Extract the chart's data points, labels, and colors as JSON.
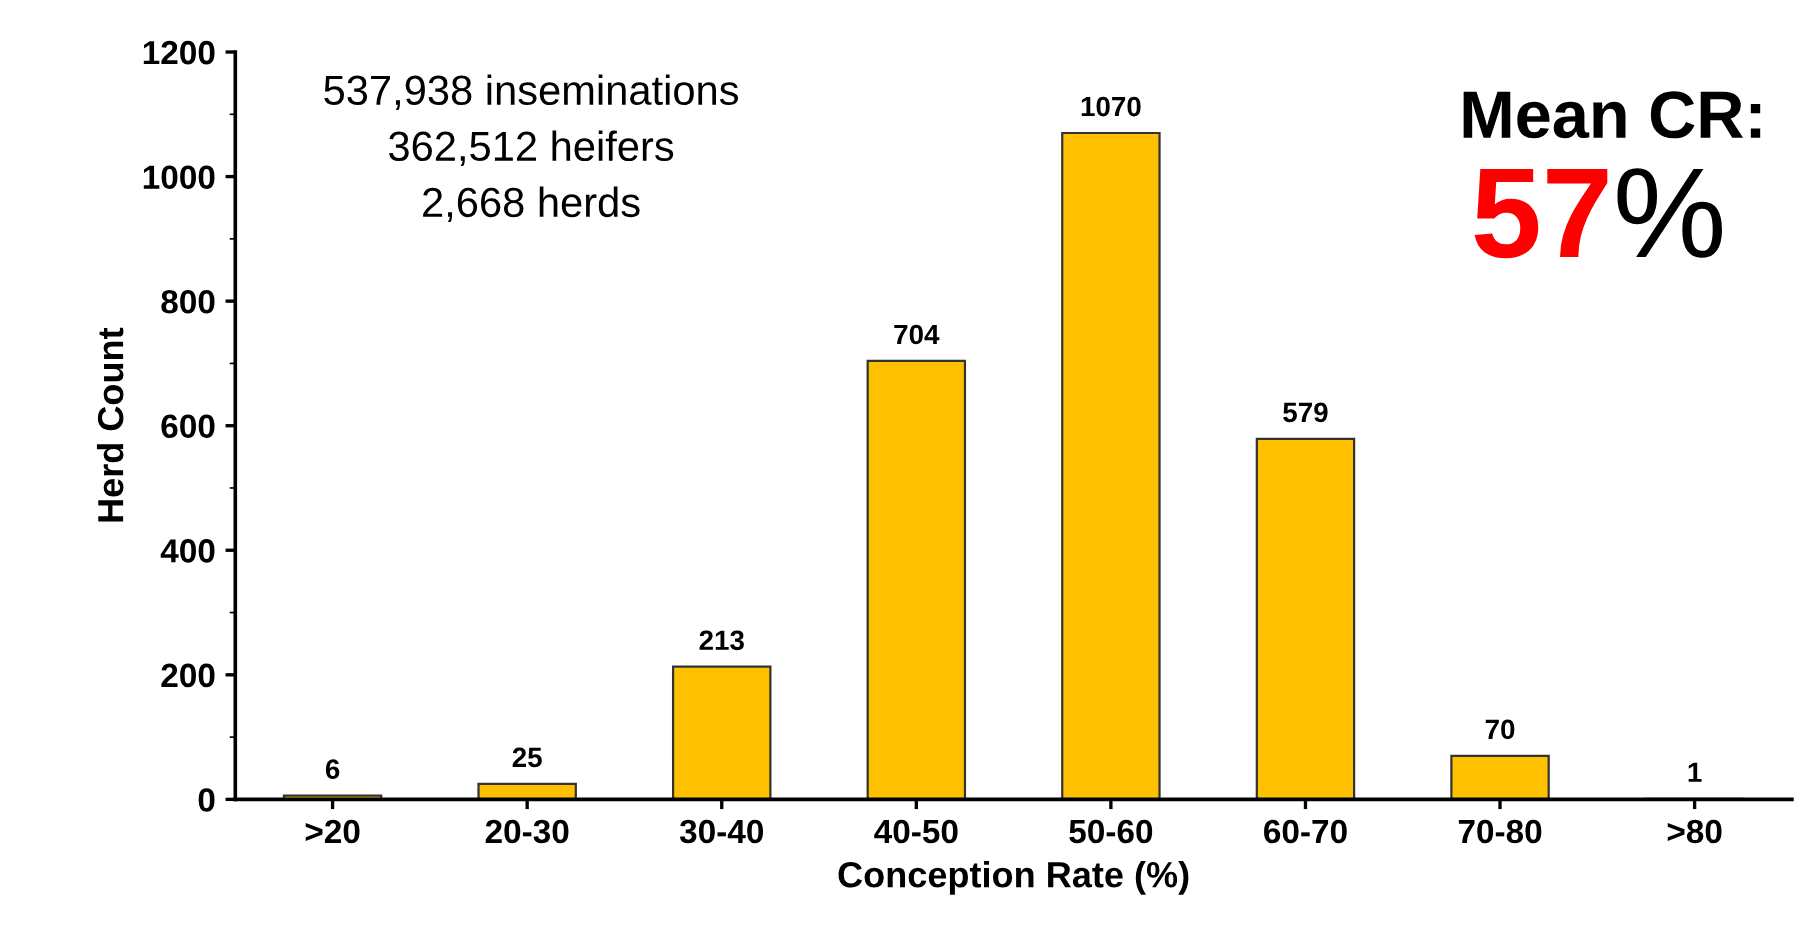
{
  "chart_data": {
    "type": "bar",
    "xlabel": "Conception Rate (%)",
    "ylabel": "Herd Count",
    "categories": [
      ">20",
      "20-30",
      "30-40",
      "40-50",
      "50-60",
      "60-70",
      "70-80",
      ">80"
    ],
    "values": [
      6,
      25,
      213,
      704,
      1070,
      579,
      70,
      1
    ],
    "color": "#ffc000",
    "ylim": [
      0,
      1200
    ],
    "yticks": [
      0,
      200,
      400,
      600,
      800,
      1000,
      1200
    ],
    "grid": false,
    "data_labels": true,
    "annotations": [
      "537,938 inseminations",
      "362,512 heifers",
      "2,668 herds",
      "Mean CR:",
      "57",
      "%"
    ]
  }
}
